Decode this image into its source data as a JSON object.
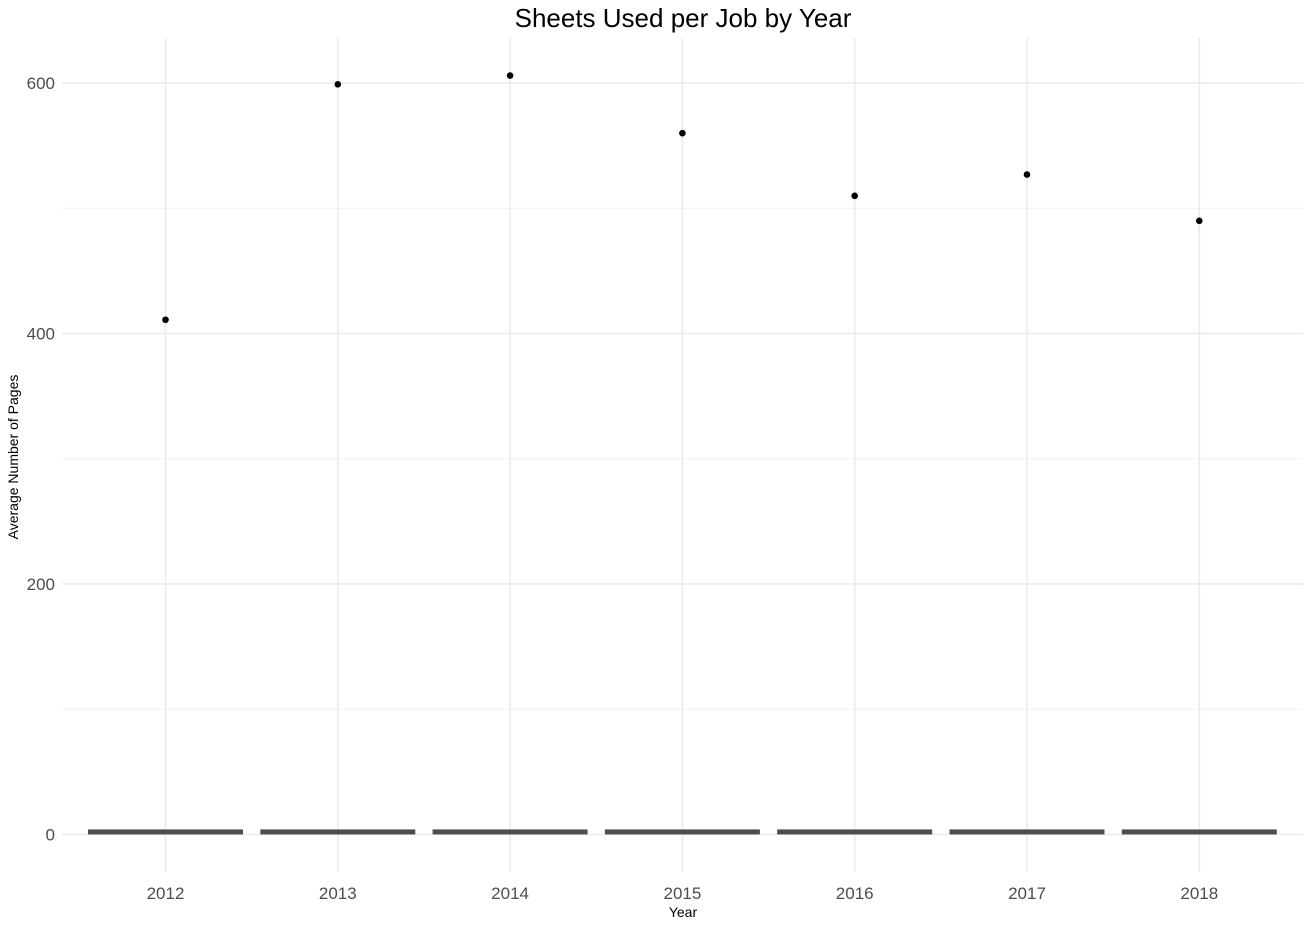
{
  "chart_data": {
    "type": "bar",
    "title": "Sheets Used per Job by Year",
    "xlabel": "Year",
    "ylabel": "Average Number of Pages",
    "categories": [
      "2012",
      "2013",
      "2014",
      "2015",
      "2016",
      "2017",
      "2018"
    ],
    "ylim": [
      -30,
      636
    ],
    "y_ticks": [
      0,
      200,
      400,
      600
    ],
    "y_minor_ticks": [
      100,
      300,
      500
    ],
    "grid": true,
    "legend": "none",
    "series": [
      {
        "type": "bar",
        "values": [
          4,
          4,
          4,
          4,
          4,
          4,
          4
        ],
        "color": "#4d4d4d"
      },
      {
        "type": "scatter",
        "values": [
          411,
          599,
          606,
          560,
          510,
          527,
          490
        ],
        "color": "#000000"
      }
    ]
  }
}
